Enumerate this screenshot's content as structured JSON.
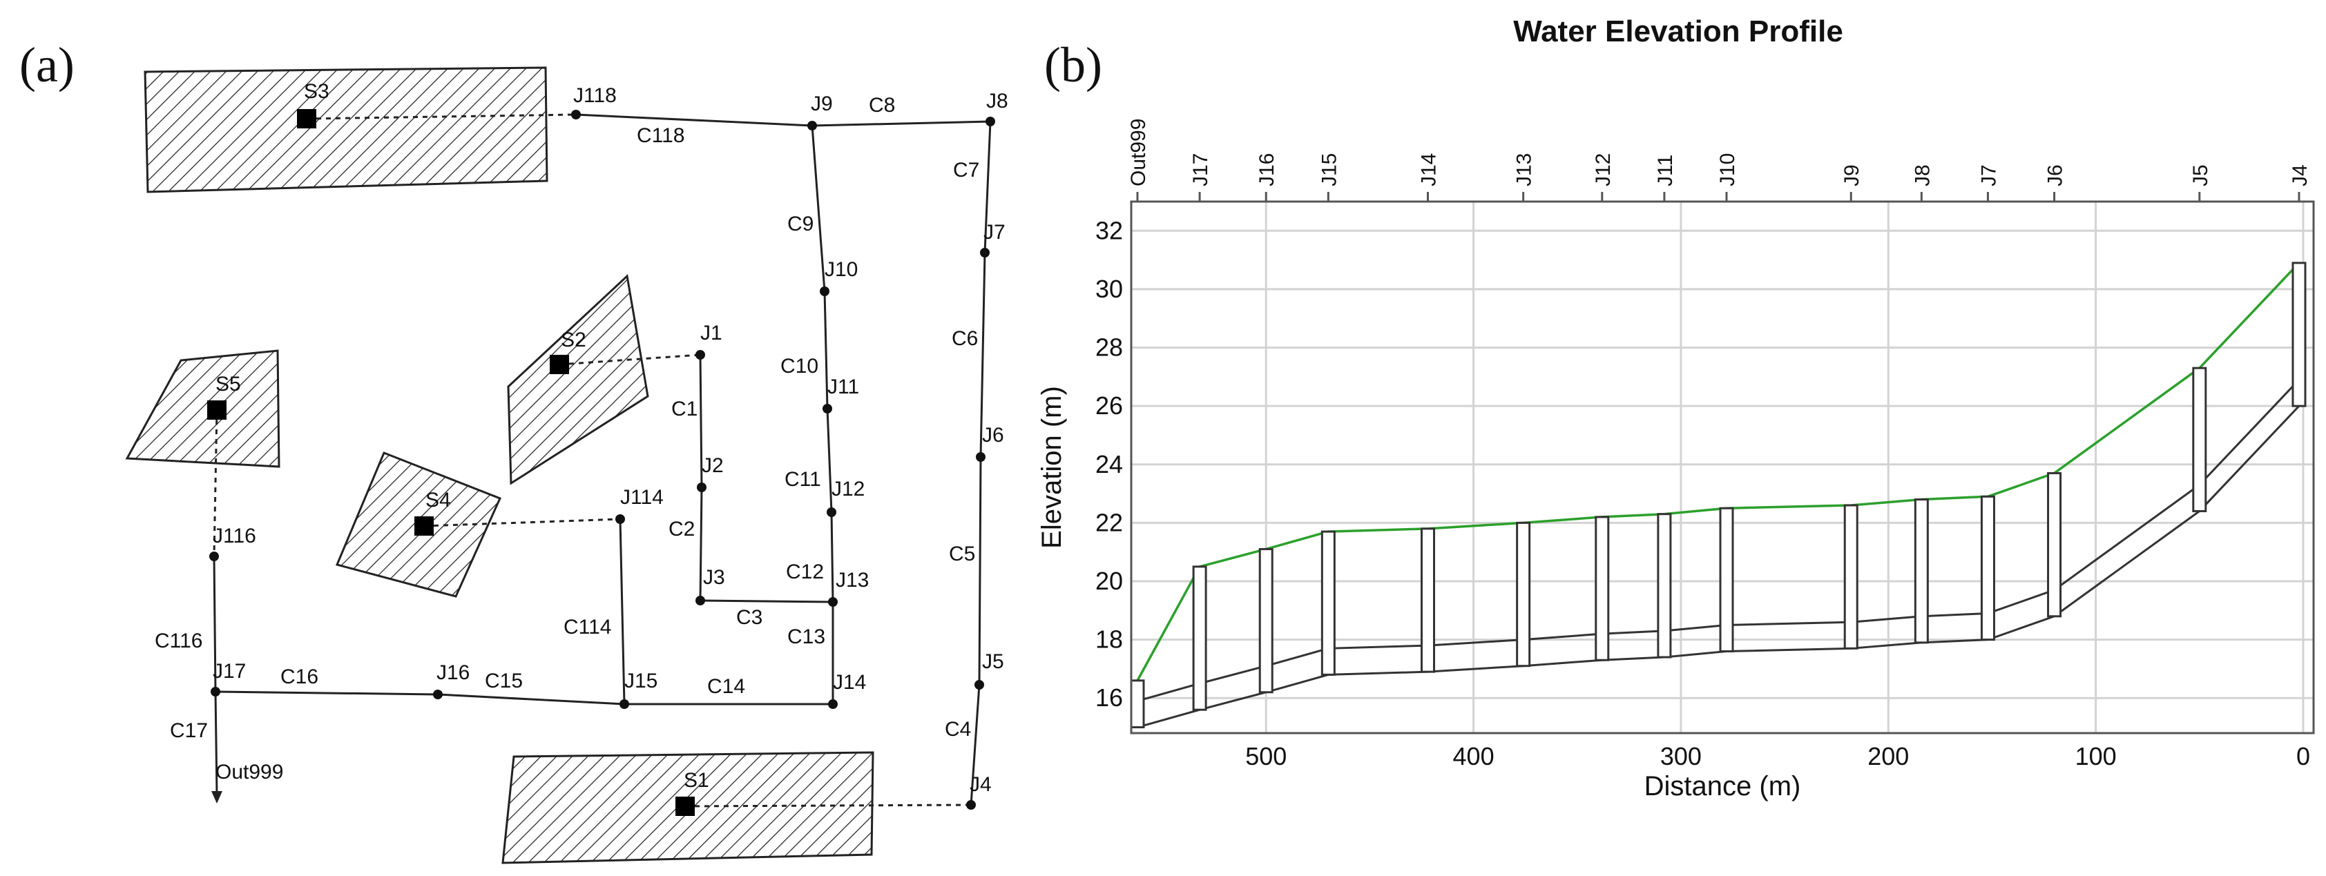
{
  "panel_a": {
    "label": "(a)",
    "subcatchments": [
      "S1",
      "S2",
      "S3",
      "S4",
      "S5"
    ],
    "junctions": {
      "J1": "J1",
      "J2": "J2",
      "J3": "J3",
      "J4": "J4",
      "J5": "J5",
      "J6": "J6",
      "J7": "J7",
      "J8": "J8",
      "J9": "J9",
      "J10": "J10",
      "J11": "J11",
      "J12": "J12",
      "J13": "J13",
      "J14": "J14",
      "J15": "J15",
      "J16": "J16",
      "J17": "J17",
      "J114": "J114",
      "J116": "J116",
      "J118": "J118",
      "Out999": "Out999"
    },
    "conduits": {
      "C1": "C1",
      "C2": "C2",
      "C3": "C3",
      "C4": "C4",
      "C5": "C5",
      "C6": "C6",
      "C7": "C7",
      "C8": "C8",
      "C9": "C9",
      "C10": "C10",
      "C11": "C11",
      "C12": "C12",
      "C13": "C13",
      "C14": "C14",
      "C15": "C15",
      "C16": "C16",
      "C17": "C17",
      "C114": "C114",
      "C116": "C116",
      "C118": "C118"
    }
  },
  "panel_b": {
    "label": "(b)",
    "title": "Water Elevation Profile"
  },
  "chart_data": {
    "type": "line",
    "title": "Water Elevation Profile",
    "xlabel": "Distance (m)",
    "ylabel": "Elevation (m)",
    "xlim": [
      565,
      -5
    ],
    "ylim": [
      14.8,
      33
    ],
    "x_ticks": [
      500,
      400,
      300,
      200,
      100,
      0
    ],
    "y_ticks": [
      16,
      18,
      20,
      22,
      24,
      26,
      28,
      30,
      32
    ],
    "grid": true,
    "nodes": [
      {
        "name": "Out999",
        "distance": 562,
        "invert": 15.0,
        "ground": 16.6,
        "water": 16.6
      },
      {
        "name": "J17",
        "distance": 532,
        "invert": 15.6,
        "ground": 20.5,
        "water": 20.5
      },
      {
        "name": "J16",
        "distance": 500,
        "invert": 16.2,
        "ground": 21.1,
        "water": 21.1
      },
      {
        "name": "J15",
        "distance": 470,
        "invert": 16.8,
        "ground": 21.7,
        "water": 21.7
      },
      {
        "name": "J14",
        "distance": 422,
        "invert": 16.9,
        "ground": 21.8,
        "water": 21.8
      },
      {
        "name": "J13",
        "distance": 376,
        "invert": 17.1,
        "ground": 22.0,
        "water": 22.0
      },
      {
        "name": "J12",
        "distance": 338,
        "invert": 17.3,
        "ground": 22.2,
        "water": 22.2
      },
      {
        "name": "J11",
        "distance": 308,
        "invert": 17.4,
        "ground": 22.3,
        "water": 22.3
      },
      {
        "name": "J10",
        "distance": 278,
        "invert": 17.6,
        "ground": 22.5,
        "water": 22.5
      },
      {
        "name": "J9",
        "distance": 218,
        "invert": 17.7,
        "ground": 22.6,
        "water": 22.6
      },
      {
        "name": "J8",
        "distance": 184,
        "invert": 17.9,
        "ground": 22.8,
        "water": 22.8
      },
      {
        "name": "J7",
        "distance": 152,
        "invert": 18.0,
        "ground": 22.9,
        "water": 22.9
      },
      {
        "name": "J6",
        "distance": 120,
        "invert": 18.8,
        "ground": 23.7,
        "water": 23.7
      },
      {
        "name": "J5",
        "distance": 50,
        "invert": 22.4,
        "ground": 27.3,
        "water": 27.3
      },
      {
        "name": "J4",
        "distance": 2,
        "invert": 26.0,
        "ground": 30.9,
        "water": 30.9
      }
    ],
    "pipe_crown_offset": 0.9,
    "colors": {
      "water": "#2ca02c",
      "pipe": "#333333",
      "grid": "#d3d3d3",
      "node_fill": "#ffffff"
    }
  }
}
